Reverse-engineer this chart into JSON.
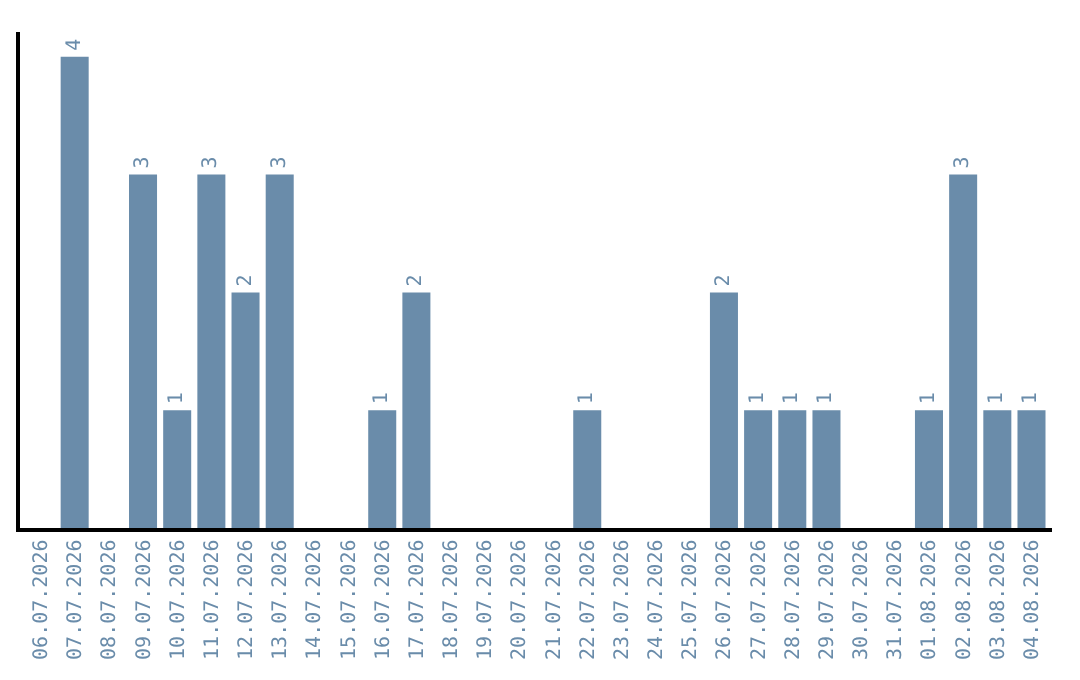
{
  "chart_data": {
    "type": "bar",
    "categories": [
      "06.07.2026",
      "07.07.2026",
      "08.07.2026",
      "09.07.2026",
      "10.07.2026",
      "11.07.2026",
      "12.07.2026",
      "13.07.2026",
      "14.07.2026",
      "15.07.2026",
      "16.07.2026",
      "17.07.2026",
      "18.07.2026",
      "19.07.2026",
      "20.07.2026",
      "21.07.2026",
      "22.07.2026",
      "23.07.2026",
      "24.07.2026",
      "25.07.2026",
      "26.07.2026",
      "27.07.2026",
      "28.07.2026",
      "29.07.2026",
      "30.07.2026",
      "31.07.2026",
      "01.08.2026",
      "02.08.2026",
      "03.08.2026",
      "04.08.2026"
    ],
    "values": [
      0,
      4,
      0,
      3,
      1,
      3,
      2,
      3,
      0,
      0,
      1,
      2,
      0,
      0,
      0,
      0,
      1,
      0,
      0,
      0,
      2,
      1,
      1,
      1,
      0,
      0,
      1,
      3,
      1,
      1
    ],
    "value_labels": [
      null,
      "4",
      null,
      "3",
      "1",
      "3",
      "2",
      "3",
      null,
      null,
      "1",
      "2",
      null,
      null,
      null,
      null,
      "1",
      null,
      null,
      null,
      "2",
      "1",
      "1",
      "1",
      null,
      null,
      "1",
      "3",
      "1",
      "1"
    ],
    "color": "#6a8caa",
    "tick_labels": "x"
  }
}
